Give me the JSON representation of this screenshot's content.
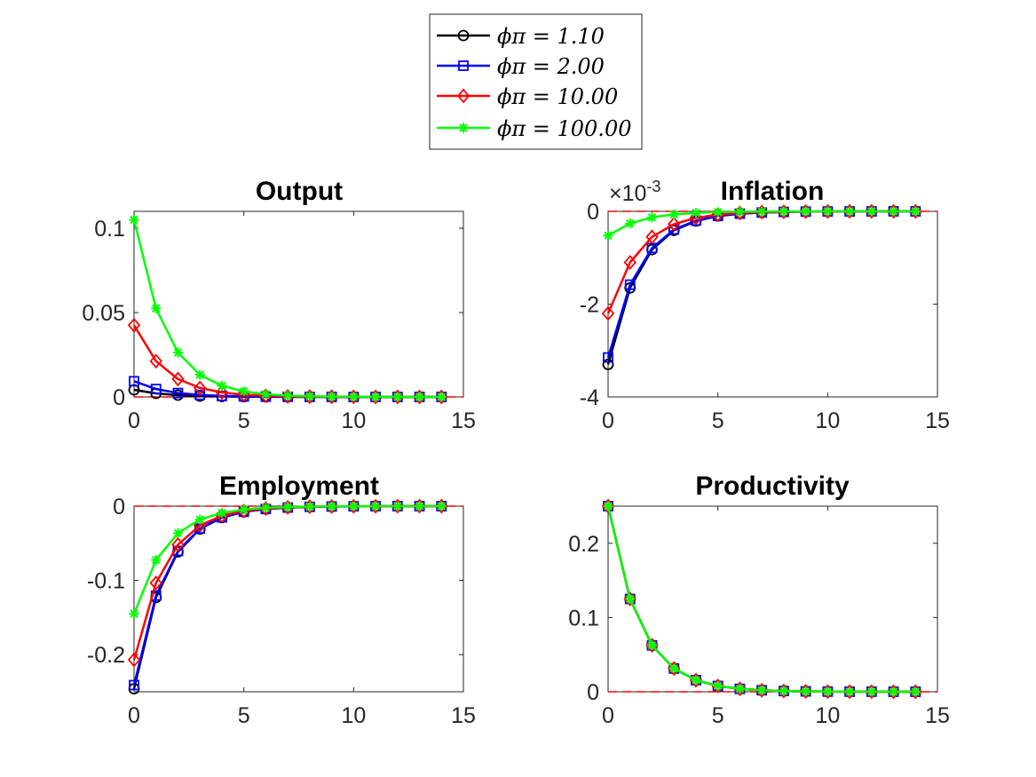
{
  "legend": {
    "entries": [
      {
        "label": "ϕπ = 1.10",
        "color": "#000000",
        "marker": "circle"
      },
      {
        "label": "ϕπ = 2.00",
        "color": "#0000ff",
        "marker": "square"
      },
      {
        "label": "ϕπ = 10.00",
        "color": "#ff0000",
        "marker": "diamond"
      },
      {
        "label": "ϕπ = 100.00",
        "color": "#00ff00",
        "marker": "asterisk"
      }
    ]
  },
  "chart_data": [
    {
      "type": "line",
      "title": "Output",
      "xlabel": "",
      "ylabel": "",
      "x": [
        0,
        1,
        2,
        3,
        4,
        5,
        6,
        7,
        8,
        9,
        10,
        11,
        12,
        13,
        14
      ],
      "xlim": [
        0,
        15
      ],
      "ylim": [
        0,
        0.11
      ],
      "xticks": [
        0,
        5,
        10,
        15
      ],
      "xtick_labels": [
        "0",
        "5",
        "10",
        "15"
      ],
      "yticks": [
        0,
        0.05,
        0.1
      ],
      "ytick_labels": [
        "0",
        "0.05",
        "0.1"
      ],
      "y_exponent": "",
      "zero_line": true,
      "series": [
        {
          "name": "ϕπ = 1.10",
          "color": "#000000",
          "marker": "circle",
          "values": [
            0.0042,
            0.0021,
            0.00105,
            0.00053,
            0.00026,
            0.00013,
            7e-05,
            3e-05,
            2e-05,
            1e-05,
            0,
            0,
            0,
            0,
            0
          ]
        },
        {
          "name": "ϕπ = 2.00",
          "color": "#0000ff",
          "marker": "square",
          "values": [
            0.0093,
            0.0047,
            0.0023,
            0.0012,
            0.0006,
            0.0003,
            0.00015,
            7e-05,
            4e-05,
            2e-05,
            1e-05,
            0,
            0,
            0,
            0
          ]
        },
        {
          "name": "ϕπ = 10.00",
          "color": "#ff0000",
          "marker": "diamond",
          "values": [
            0.0425,
            0.0212,
            0.0106,
            0.0053,
            0.0027,
            0.0013,
            0.0007,
            0.0003,
            0.0002,
            0.0001,
            4e-05,
            2e-05,
            1e-05,
            0,
            0
          ]
        },
        {
          "name": "ϕπ = 100.00",
          "color": "#00ff00",
          "marker": "asterisk",
          "values": [
            0.105,
            0.0525,
            0.0263,
            0.0131,
            0.0066,
            0.0033,
            0.0016,
            0.0008,
            0.0004,
            0.0002,
            0.0001,
            5e-05,
            3e-05,
            1e-05,
            0
          ]
        }
      ]
    },
    {
      "type": "line",
      "title": "Inflation",
      "xlabel": "",
      "ylabel": "",
      "x": [
        0,
        1,
        2,
        3,
        4,
        5,
        6,
        7,
        8,
        9,
        10,
        11,
        12,
        13,
        14
      ],
      "xlim": [
        0,
        15
      ],
      "ylim": [
        -4,
        0
      ],
      "xticks": [
        0,
        5,
        10,
        15
      ],
      "xtick_labels": [
        "0",
        "5",
        "10",
        "15"
      ],
      "yticks": [
        -4,
        -2,
        0
      ],
      "ytick_labels": [
        "-4",
        "-2",
        "0"
      ],
      "y_exponent": "×10",
      "y_exponent_power": "-3",
      "zero_line": true,
      "series": [
        {
          "name": "ϕπ = 1.10",
          "color": "#000000",
          "marker": "circle",
          "values": [
            -3.3,
            -1.65,
            -0.825,
            -0.41,
            -0.21,
            -0.1,
            -0.05,
            -0.026,
            -0.013,
            -0.006,
            -0.003,
            -0.002,
            -0.001,
            0,
            0
          ]
        },
        {
          "name": "ϕπ = 2.00",
          "color": "#0000ff",
          "marker": "square",
          "values": [
            -3.15,
            -1.58,
            -0.79,
            -0.39,
            -0.2,
            -0.1,
            -0.05,
            -0.025,
            -0.012,
            -0.006,
            -0.003,
            -0.002,
            -0.001,
            0,
            0
          ]
        },
        {
          "name": "ϕπ = 10.00",
          "color": "#ff0000",
          "marker": "diamond",
          "values": [
            -2.2,
            -1.1,
            -0.55,
            -0.275,
            -0.14,
            -0.07,
            -0.035,
            -0.017,
            -0.009,
            -0.004,
            -0.002,
            -0.001,
            0,
            0,
            0
          ]
        },
        {
          "name": "ϕπ = 100.00",
          "color": "#00ff00",
          "marker": "asterisk",
          "values": [
            -0.52,
            -0.26,
            -0.13,
            -0.065,
            -0.033,
            -0.016,
            -0.008,
            -0.004,
            -0.002,
            -0.001,
            0,
            0,
            0,
            0,
            0
          ]
        }
      ]
    },
    {
      "type": "line",
      "title": "Employment",
      "xlabel": "",
      "ylabel": "",
      "x": [
        0,
        1,
        2,
        3,
        4,
        5,
        6,
        7,
        8,
        9,
        10,
        11,
        12,
        13,
        14
      ],
      "xlim": [
        0,
        15
      ],
      "ylim": [
        -0.25,
        0
      ],
      "xticks": [
        0,
        5,
        10,
        15
      ],
      "xtick_labels": [
        "0",
        "5",
        "10",
        "15"
      ],
      "yticks": [
        -0.2,
        -0.1,
        0
      ],
      "ytick_labels": [
        "-0.2",
        "-0.1",
        "0"
      ],
      "y_exponent": "",
      "zero_line": true,
      "series": [
        {
          "name": "ϕπ = 1.10",
          "color": "#000000",
          "marker": "circle",
          "values": [
            -0.246,
            -0.123,
            -0.0615,
            -0.0308,
            -0.0154,
            -0.0077,
            -0.0038,
            -0.0019,
            -0.001,
            -0.0005,
            -0.0002,
            -0.0001,
            0,
            0,
            0
          ]
        },
        {
          "name": "ϕπ = 2.00",
          "color": "#0000ff",
          "marker": "square",
          "values": [
            -0.241,
            -0.1205,
            -0.0603,
            -0.0301,
            -0.0151,
            -0.0075,
            -0.0038,
            -0.0019,
            -0.0009,
            -0.0005,
            -0.0002,
            -0.0001,
            0,
            0,
            0
          ]
        },
        {
          "name": "ϕπ = 10.00",
          "color": "#ff0000",
          "marker": "diamond",
          "values": [
            -0.207,
            -0.1035,
            -0.0518,
            -0.0259,
            -0.0129,
            -0.0065,
            -0.0032,
            -0.0016,
            -0.0008,
            -0.0004,
            -0.0002,
            -0.0001,
            0,
            0,
            0
          ]
        },
        {
          "name": "ϕπ = 100.00",
          "color": "#00ff00",
          "marker": "asterisk",
          "values": [
            -0.145,
            -0.0725,
            -0.0363,
            -0.0181,
            -0.0091,
            -0.0045,
            -0.0023,
            -0.0011,
            -0.0006,
            -0.0003,
            -0.0001,
            -0.0001,
            0,
            0,
            0
          ]
        }
      ]
    },
    {
      "type": "line",
      "title": "Productivity",
      "xlabel": "",
      "ylabel": "",
      "x": [
        0,
        1,
        2,
        3,
        4,
        5,
        6,
        7,
        8,
        9,
        10,
        11,
        12,
        13,
        14
      ],
      "xlim": [
        0,
        15
      ],
      "ylim": [
        0,
        0.25
      ],
      "xticks": [
        0,
        5,
        10,
        15
      ],
      "xtick_labels": [
        "0",
        "5",
        "10",
        "15"
      ],
      "yticks": [
        0,
        0.1,
        0.2
      ],
      "ytick_labels": [
        "0",
        "0.1",
        "0.2"
      ],
      "y_exponent": "",
      "zero_line": true,
      "series": [
        {
          "name": "ϕπ = 1.10",
          "color": "#000000",
          "marker": "circle",
          "values": [
            0.25,
            0.125,
            0.0625,
            0.0313,
            0.0156,
            0.0078,
            0.0039,
            0.002,
            0.001,
            0.0005,
            0.0002,
            0.0001,
            0.0001,
            0,
            0
          ]
        },
        {
          "name": "ϕπ = 2.00",
          "color": "#0000ff",
          "marker": "square",
          "values": [
            0.25,
            0.125,
            0.0625,
            0.0313,
            0.0156,
            0.0078,
            0.0039,
            0.002,
            0.001,
            0.0005,
            0.0002,
            0.0001,
            0.0001,
            0,
            0
          ]
        },
        {
          "name": "ϕπ = 10.00",
          "color": "#ff0000",
          "marker": "diamond",
          "values": [
            0.25,
            0.125,
            0.0625,
            0.0313,
            0.0156,
            0.0078,
            0.0039,
            0.002,
            0.001,
            0.0005,
            0.0002,
            0.0001,
            0.0001,
            0,
            0
          ]
        },
        {
          "name": "ϕπ = 100.00",
          "color": "#00ff00",
          "marker": "asterisk",
          "values": [
            0.25,
            0.125,
            0.0625,
            0.0313,
            0.0156,
            0.0078,
            0.0039,
            0.002,
            0.001,
            0.0005,
            0.0002,
            0.0001,
            0.0001,
            0,
            0
          ]
        }
      ]
    }
  ]
}
